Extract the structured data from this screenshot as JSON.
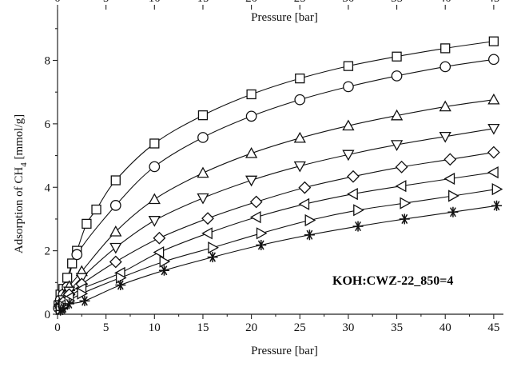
{
  "chart_data": {
    "type": "line",
    "xlabel": "Pressure [bar]",
    "x2label": "Pressure [bar]",
    "ylabel_main": "Adsorption of CH",
    "ylabel_sub": "4",
    "ylabel_unit": " [mmol/g]",
    "annotation": "KOH:CWZ-22_850=4",
    "xlim": [
      0,
      46
    ],
    "ylim": [
      0,
      9.6
    ],
    "xticks": [
      0,
      5,
      10,
      15,
      20,
      25,
      30,
      35,
      40,
      45
    ],
    "yticks": [
      0,
      2,
      4,
      6,
      8
    ],
    "xtick_labels": [
      "0",
      "5",
      "10",
      "15",
      "20",
      "25",
      "30",
      "35",
      "40",
      "45"
    ],
    "ytick_labels": [
      "0",
      "2",
      "4",
      "6",
      "8"
    ],
    "grid": false,
    "series": [
      {
        "marker": "square",
        "x": [
          0.1,
          0.3,
          0.6,
          1.0,
          1.5,
          2.0,
          3.0,
          4.0,
          6.0,
          10.0,
          15.0,
          20.0,
          25.0,
          30.0,
          35.0,
          40.0,
          45.0
        ],
        "y": [
          0.28,
          0.62,
          0.8,
          1.15,
          1.6,
          2.0,
          2.85,
          3.3,
          4.22,
          5.38,
          6.27,
          6.93,
          7.43,
          7.82,
          8.12,
          8.38,
          8.6
        ]
      },
      {
        "marker": "circle",
        "x": [
          0.1,
          0.3,
          0.6,
          1.0,
          2.0,
          6.0,
          10.0,
          15.0,
          20.0,
          25.0,
          30.0,
          35.0,
          40.0,
          45.0
        ],
        "y": [
          0.2,
          0.45,
          0.62,
          0.85,
          1.88,
          3.43,
          4.65,
          5.57,
          6.24,
          6.76,
          7.17,
          7.51,
          7.8,
          8.03
        ]
      },
      {
        "marker": "triangle-up",
        "x": [
          0.3,
          0.6,
          1.2,
          2.5,
          6.0,
          10.0,
          15.0,
          20.0,
          25.0,
          30.0,
          35.0,
          40.0,
          45.0
        ],
        "y": [
          0.38,
          0.55,
          0.88,
          1.35,
          2.6,
          3.62,
          4.45,
          5.07,
          5.55,
          5.94,
          6.26,
          6.54,
          6.76
        ]
      },
      {
        "marker": "triangle-down",
        "x": [
          0.3,
          0.6,
          1.2,
          2.5,
          6.0,
          10.0,
          15.0,
          20.0,
          25.0,
          30.0,
          35.0,
          40.0,
          45.0
        ],
        "y": [
          0.3,
          0.45,
          0.72,
          1.15,
          2.1,
          2.95,
          3.66,
          4.22,
          4.67,
          5.03,
          5.34,
          5.6,
          5.85
        ]
      },
      {
        "marker": "diamond",
        "x": [
          0.3,
          0.6,
          1.2,
          2.5,
          6.0,
          10.5,
          15.5,
          20.5,
          25.5,
          30.5,
          35.5,
          40.5,
          45.0
        ],
        "y": [
          0.25,
          0.38,
          0.62,
          0.95,
          1.65,
          2.4,
          3.02,
          3.54,
          3.99,
          4.34,
          4.64,
          4.88,
          5.1
        ]
      },
      {
        "marker": "triangle-left",
        "x": [
          0.3,
          0.6,
          1.2,
          2.5,
          6.5,
          10.5,
          15.5,
          20.5,
          25.5,
          30.5,
          35.5,
          40.5,
          45.0
        ],
        "y": [
          0.2,
          0.32,
          0.52,
          0.8,
          1.3,
          1.95,
          2.55,
          3.06,
          3.47,
          3.79,
          4.04,
          4.27,
          4.47
        ]
      },
      {
        "marker": "triangle-right",
        "x": [
          0.3,
          0.6,
          1.2,
          2.5,
          6.5,
          11.0,
          16.0,
          21.0,
          26.0,
          31.0,
          35.8,
          40.8,
          45.3
        ],
        "y": [
          0.16,
          0.25,
          0.42,
          0.65,
          1.15,
          1.66,
          2.1,
          2.55,
          2.96,
          3.28,
          3.5,
          3.73,
          3.94
        ]
      },
      {
        "marker": "asterisk",
        "x": [
          0.3,
          0.6,
          1.2,
          2.8,
          6.5,
          11.0,
          16.0,
          21.0,
          26.0,
          31.0,
          35.8,
          40.8,
          45.3
        ],
        "y": [
          0.12,
          0.2,
          0.33,
          0.42,
          0.92,
          1.38,
          1.8,
          2.18,
          2.5,
          2.77,
          3.0,
          3.22,
          3.42
        ]
      }
    ]
  }
}
